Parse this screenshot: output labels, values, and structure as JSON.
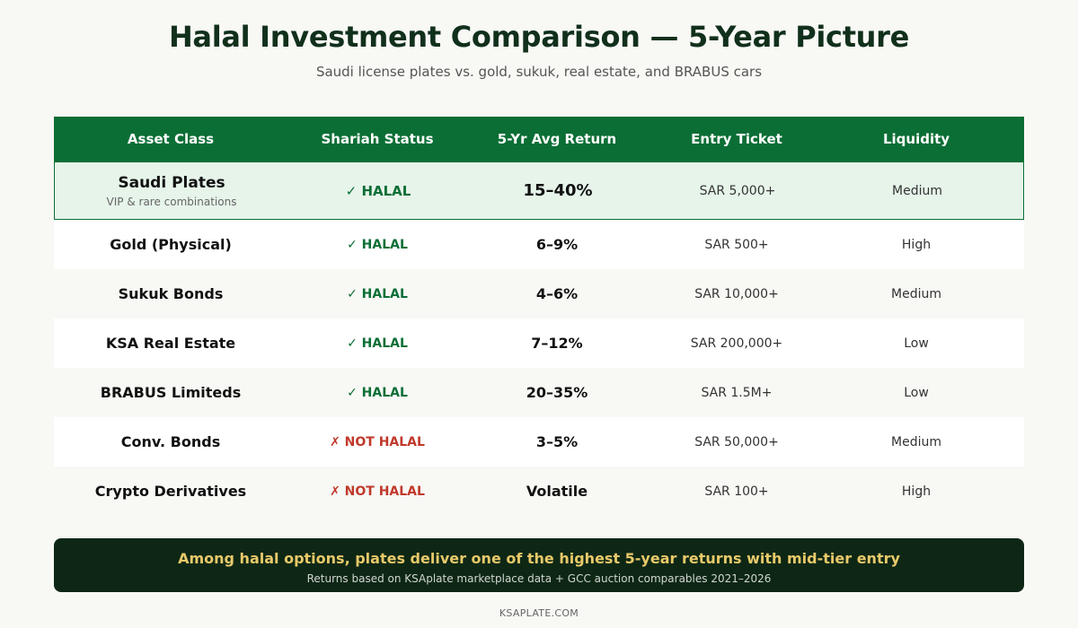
{
  "title": "Halal Investment Comparison — 5-Year Picture",
  "subtitle": "Saudi license plates vs. gold, sukuk, real estate, and BRABUS cars",
  "colors": {
    "header_bg": "#0b6e35",
    "highlight_bg": "#e6f4ea",
    "halal": "#0b6e35",
    "not_halal": "#c0392b",
    "banner_bg": "#0e2715",
    "banner_text": "#e8c96a"
  },
  "chart_data": {
    "type": "table",
    "columns": [
      "Asset Class",
      "Shariah Status",
      "5-Yr Avg Return",
      "Entry Ticket",
      "Liquidity"
    ],
    "rows": [
      {
        "asset": "Saudi Plates",
        "sub": "VIP & rare combinations",
        "status": "✓ HALAL",
        "halal": true,
        "return": "15–40%",
        "entry": "SAR 5,000+",
        "liquidity": "Medium",
        "highlight": true
      },
      {
        "asset": "Gold (Physical)",
        "sub": "",
        "status": "✓ HALAL",
        "halal": true,
        "return": "6–9%",
        "entry": "SAR 500+",
        "liquidity": "High",
        "highlight": false
      },
      {
        "asset": "Sukuk Bonds",
        "sub": "",
        "status": "✓ HALAL",
        "halal": true,
        "return": "4–6%",
        "entry": "SAR 10,000+",
        "liquidity": "Medium",
        "highlight": false
      },
      {
        "asset": "KSA Real Estate",
        "sub": "",
        "status": "✓ HALAL",
        "halal": true,
        "return": "7–12%",
        "entry": "SAR 200,000+",
        "liquidity": "Low",
        "highlight": false
      },
      {
        "asset": "BRABUS Limiteds",
        "sub": "",
        "status": "✓ HALAL",
        "halal": true,
        "return": "20–35%",
        "entry": "SAR 1.5M+",
        "liquidity": "Low",
        "highlight": false
      },
      {
        "asset": "Conv. Bonds",
        "sub": "",
        "status": "✗ NOT HALAL",
        "halal": false,
        "return": "3–5%",
        "entry": "SAR 50,000+",
        "liquidity": "Medium",
        "highlight": false
      },
      {
        "asset": "Crypto Derivatives",
        "sub": "",
        "status": "✗ NOT HALAL",
        "halal": false,
        "return": "Volatile",
        "entry": "SAR 100+",
        "liquidity": "High",
        "highlight": false
      }
    ]
  },
  "banner": {
    "headline": "Among halal options, plates deliver one of the highest 5-year returns with mid-tier entry",
    "note": "Returns based on KSAplate marketplace data + GCC auction comparables 2021–2026"
  },
  "footer": "KSAPLATE.COM"
}
